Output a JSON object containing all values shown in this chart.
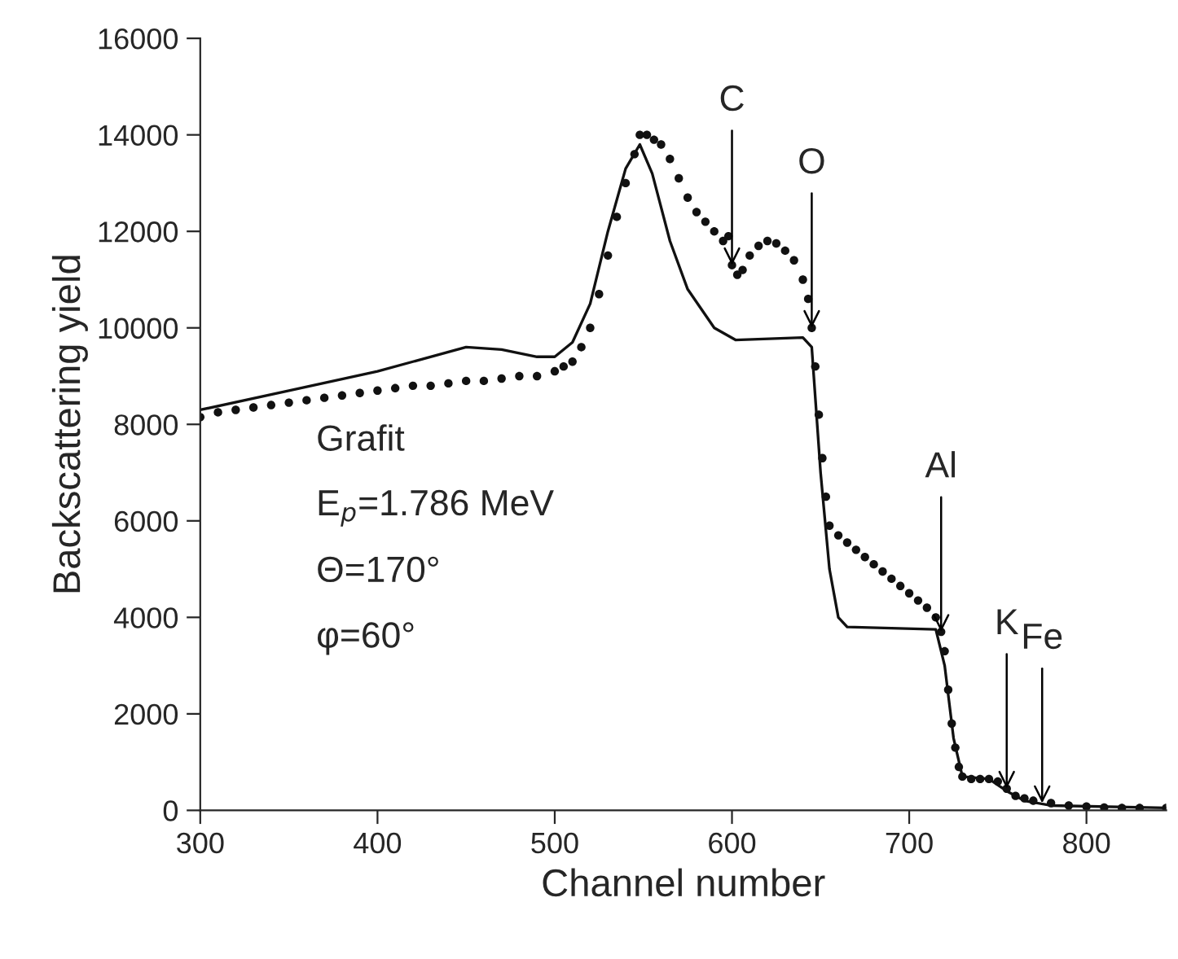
{
  "chart_data": {
    "type": "scatter",
    "xlabel": "Channel number",
    "ylabel": "Backscattering yield",
    "xlim": [
      300,
      845
    ],
    "ylim": [
      0,
      16000
    ],
    "xticks": [
      300,
      400,
      500,
      600,
      700,
      800
    ],
    "yticks": [
      0,
      2000,
      4000,
      6000,
      8000,
      10000,
      12000,
      14000,
      16000
    ],
    "grid": false,
    "legend": false,
    "series": [
      {
        "color": "#111111",
        "marker": "circle",
        "x": [
          300,
          310,
          320,
          330,
          340,
          350,
          360,
          370,
          380,
          390,
          400,
          410,
          420,
          430,
          440,
          450,
          460,
          470,
          480,
          490,
          500,
          505,
          510,
          515,
          520,
          525,
          530,
          535,
          540,
          545,
          548,
          552,
          556,
          560,
          565,
          570,
          575,
          580,
          585,
          590,
          595,
          598,
          600,
          603,
          606,
          610,
          615,
          620,
          625,
          630,
          635,
          640,
          643,
          645,
          647,
          649,
          651,
          653,
          655,
          660,
          665,
          670,
          675,
          680,
          685,
          690,
          695,
          700,
          705,
          710,
          715,
          718,
          720,
          722,
          724,
          726,
          728,
          730,
          735,
          740,
          745,
          750,
          755,
          760,
          765,
          770,
          780,
          790,
          800,
          810,
          820,
          830,
          845
        ],
        "values": [
          8150,
          8250,
          8300,
          8350,
          8400,
          8450,
          8500,
          8550,
          8600,
          8650,
          8700,
          8750,
          8800,
          8800,
          8850,
          8900,
          8900,
          8950,
          9000,
          9000,
          9100,
          9200,
          9300,
          9600,
          10000,
          10700,
          11500,
          12300,
          13000,
          13600,
          14000,
          14000,
          13900,
          13800,
          13500,
          13100,
          12700,
          12400,
          12200,
          12000,
          11800,
          11900,
          11300,
          11100,
          11200,
          11500,
          11700,
          11800,
          11750,
          11600,
          11400,
          11000,
          10600,
          10000,
          9200,
          8200,
          7300,
          6500,
          5900,
          5700,
          5550,
          5400,
          5250,
          5100,
          4950,
          4800,
          4650,
          4500,
          4350,
          4200,
          4000,
          3700,
          3300,
          2500,
          1800,
          1300,
          900,
          700,
          650,
          650,
          650,
          600,
          450,
          300,
          250,
          200,
          150,
          100,
          80,
          60,
          50,
          50,
          50
        ]
      },
      {
        "type": "line",
        "color": "#111111",
        "marker": "none",
        "line_style": "solid",
        "x": [
          300,
          350,
          400,
          450,
          470,
          490,
          500,
          510,
          520,
          530,
          540,
          548,
          555,
          565,
          575,
          590,
          602,
          640,
          645,
          650,
          655,
          660,
          665,
          715,
          720,
          725,
          730,
          745,
          755,
          765,
          780,
          845
        ],
        "values": [
          8300,
          8700,
          9100,
          9600,
          9550,
          9400,
          9400,
          9700,
          10500,
          12000,
          13300,
          13800,
          13200,
          11800,
          10800,
          10000,
          9750,
          9800,
          9600,
          7000,
          5000,
          4000,
          3800,
          3750,
          3000,
          1500,
          700,
          650,
          400,
          200,
          100,
          50
        ]
      }
    ],
    "annotations": [
      {
        "text": "C",
        "x": 600,
        "y": 11300
      },
      {
        "text": "O",
        "x": 645,
        "y": 10000
      },
      {
        "text": "Al",
        "x": 718,
        "y": 3700
      },
      {
        "text": "K",
        "x": 755,
        "y": 450
      },
      {
        "text": "Fe",
        "x": 775,
        "y": 150
      },
      "Grafit",
      "E$_{p}$=1.786 MeV",
      "Θ=170°",
      "φ=60°"
    ]
  }
}
